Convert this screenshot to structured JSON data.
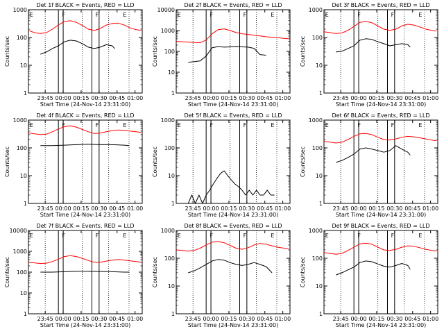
{
  "x_ticks": [
    "23:45",
    "00:00",
    "00:15",
    "00:30",
    "00:45",
    "01:00"
  ],
  "xlabel": "Start Time (24-Nov-14 23:31:00)",
  "ylabel": "Counts/sec",
  "colors": {
    "events": "#000000",
    "lld": "#ff0000",
    "frame": "#000000",
    "dotted": "#000000"
  },
  "chart_data": [
    {
      "type": "line",
      "title": "Det 1f BLACK = Events, RED = LLD",
      "x_unit": "minutes after 23:31:00",
      "xlim": [
        0,
        95
      ],
      "ylim": [
        1,
        1000
      ],
      "y_scale": "log",
      "y_ticks": [
        "1",
        "10",
        "100",
        "1000"
      ],
      "markers": [
        {
          "x": 1,
          "label": "E"
        },
        {
          "x": 28,
          "label": "F"
        },
        {
          "x": 56,
          "label": "F"
        },
        {
          "x": 79,
          "label": "E"
        }
      ],
      "solid_lines": [
        25,
        29,
        53,
        59
      ],
      "dotted_lines": [
        14,
        45,
        67,
        84
      ],
      "series": [
        {
          "key": "lld",
          "x": [
            0,
            5,
            10,
            15,
            20,
            25,
            30,
            35,
            40,
            45,
            50,
            55,
            60,
            65,
            70,
            75,
            80,
            85,
            90,
            94
          ],
          "y": [
            180,
            150,
            140,
            150,
            200,
            280,
            380,
            400,
            350,
            270,
            200,
            180,
            210,
            280,
            320,
            330,
            280,
            220,
            190,
            180
          ]
        },
        {
          "key": "events",
          "x": [
            10,
            15,
            20,
            25,
            30,
            35,
            40,
            45,
            50,
            55,
            60,
            65,
            70,
            72
          ],
          "y": [
            25,
            30,
            40,
            50,
            70,
            80,
            75,
            60,
            45,
            40,
            45,
            55,
            50,
            40
          ]
        }
      ]
    },
    {
      "type": "line",
      "title": "Det 2f BLACK = Events, RED = LLD",
      "x_unit": "minutes after 23:31:00",
      "xlim": [
        0,
        95
      ],
      "ylim": [
        1,
        10000
      ],
      "y_scale": "log",
      "y_ticks": [
        "1",
        "10",
        "100",
        "1000",
        "10000"
      ],
      "markers": [
        {
          "x": 1,
          "label": "E"
        },
        {
          "x": 28,
          "label": "F"
        },
        {
          "x": 56,
          "label": "F"
        },
        {
          "x": 79,
          "label": "E"
        }
      ],
      "solid_lines": [
        25,
        29,
        53,
        59
      ],
      "dotted_lines": [
        14,
        45,
        67,
        84
      ],
      "series": [
        {
          "key": "lld",
          "x": [
            0,
            10,
            20,
            25,
            30,
            35,
            40,
            45,
            50,
            55,
            60,
            65,
            70,
            75,
            80,
            85,
            90,
            94
          ],
          "y": [
            300,
            280,
            260,
            350,
            700,
            1100,
            1200,
            1000,
            800,
            700,
            650,
            600,
            550,
            500,
            480,
            450,
            420,
            400
          ]
        },
        {
          "key": "events",
          "x": [
            10,
            15,
            20,
            25,
            30,
            35,
            40,
            45,
            50,
            55,
            60,
            65,
            70,
            75
          ],
          "y": [
            30,
            32,
            35,
            60,
            150,
            170,
            160,
            165,
            170,
            165,
            160,
            140,
            70,
            65
          ]
        }
      ]
    },
    {
      "type": "line",
      "title": "Det 3f BLACK = Events, RED = LLD",
      "x_unit": "minutes after 23:31:00",
      "xlim": [
        0,
        95
      ],
      "ylim": [
        1,
        1000
      ],
      "y_scale": "log",
      "y_ticks": [
        "1",
        "10",
        "100",
        "1000"
      ],
      "markers": [
        {
          "x": 1,
          "label": "E"
        },
        {
          "x": 28,
          "label": "F"
        },
        {
          "x": 56,
          "label": "F"
        },
        {
          "x": 79,
          "label": "E"
        }
      ],
      "solid_lines": [
        25,
        29,
        53,
        59
      ],
      "dotted_lines": [
        14,
        45,
        67,
        84
      ],
      "series": [
        {
          "key": "lld",
          "x": [
            0,
            5,
            10,
            15,
            20,
            25,
            30,
            35,
            40,
            45,
            50,
            55,
            60,
            65,
            70,
            75,
            80,
            85,
            90,
            94
          ],
          "y": [
            160,
            150,
            140,
            145,
            180,
            250,
            350,
            380,
            340,
            260,
            200,
            180,
            200,
            260,
            300,
            280,
            240,
            200,
            180,
            170
          ]
        },
        {
          "key": "events",
          "x": [
            10,
            15,
            20,
            25,
            30,
            35,
            40,
            45,
            50,
            55,
            60,
            65,
            70,
            72
          ],
          "y": [
            30,
            32,
            40,
            50,
            80,
            90,
            85,
            70,
            60,
            50,
            55,
            60,
            55,
            45
          ]
        }
      ]
    },
    {
      "type": "line",
      "title": "Det 4f BLACK = Events, RED = LLD",
      "x_unit": "minutes after 23:31:00",
      "xlim": [
        0,
        95
      ],
      "ylim": [
        1,
        1000
      ],
      "y_scale": "log",
      "y_ticks": [
        "1",
        "10",
        "100",
        "1000"
      ],
      "markers": [
        {
          "x": 1,
          "label": "E"
        },
        {
          "x": 28,
          "label": "F"
        },
        {
          "x": 56,
          "label": "F"
        },
        {
          "x": 79,
          "label": "E"
        }
      ],
      "solid_lines": [
        25,
        29,
        53,
        59
      ],
      "dotted_lines": [
        14,
        45,
        67,
        84
      ],
      "series": [
        {
          "key": "lld",
          "x": [
            0,
            5,
            10,
            15,
            20,
            25,
            30,
            35,
            40,
            45,
            50,
            55,
            60,
            65,
            70,
            75,
            80,
            85,
            90,
            94
          ],
          "y": [
            350,
            320,
            300,
            310,
            380,
            480,
            580,
            620,
            560,
            460,
            380,
            330,
            340,
            380,
            420,
            440,
            430,
            400,
            380,
            360
          ]
        },
        {
          "key": "events",
          "x": [
            10,
            20,
            30,
            40,
            50,
            60,
            70,
            80,
            84
          ],
          "y": [
            120,
            120,
            125,
            130,
            135,
            130,
            130,
            125,
            120
          ]
        }
      ]
    },
    {
      "type": "line",
      "title": "Det 5f BLACK = Events, RED = LLD",
      "x_unit": "minutes after 23:31:00",
      "xlim": [
        0,
        95
      ],
      "ylim": [
        1,
        1000
      ],
      "y_scale": "log",
      "y_ticks": [
        "1",
        "10",
        "100",
        "1000"
      ],
      "markers": [
        {
          "x": 1,
          "label": "E"
        },
        {
          "x": 28,
          "label": "F"
        },
        {
          "x": 56,
          "label": "F"
        },
        {
          "x": 79,
          "label": "E"
        }
      ],
      "solid_lines": [
        25,
        29,
        53,
        59
      ],
      "dotted_lines": [
        14,
        45,
        67,
        84
      ],
      "series": [
        {
          "key": "events",
          "x": [
            10,
            13,
            16,
            19,
            22,
            25,
            28,
            31,
            34,
            37,
            40,
            43,
            46,
            49,
            52,
            55,
            58,
            61,
            64,
            67,
            70,
            73,
            76,
            79,
            82
          ],
          "y": [
            1,
            2,
            1,
            2,
            1,
            2,
            3,
            5,
            8,
            12,
            15,
            10,
            7,
            5,
            4,
            3,
            2,
            3,
            2,
            3,
            2,
            2,
            3,
            2,
            2
          ]
        }
      ]
    },
    {
      "type": "line",
      "title": "Det 6f BLACK = Events, RED = LLD",
      "x_unit": "minutes after 23:31:00",
      "xlim": [
        0,
        95
      ],
      "ylim": [
        1,
        1000
      ],
      "y_scale": "log",
      "y_ticks": [
        "1",
        "10",
        "100",
        "1000"
      ],
      "markers": [
        {
          "x": 1,
          "label": "E"
        },
        {
          "x": 28,
          "label": "F"
        },
        {
          "x": 56,
          "label": "F"
        },
        {
          "x": 79,
          "label": "E"
        }
      ],
      "solid_lines": [
        25,
        29,
        53,
        59
      ],
      "dotted_lines": [
        14,
        45,
        67,
        84
      ],
      "series": [
        {
          "key": "lld",
          "x": [
            0,
            5,
            10,
            15,
            20,
            25,
            30,
            35,
            40,
            45,
            50,
            55,
            60,
            65,
            70,
            75,
            80,
            85,
            90,
            94
          ],
          "y": [
            170,
            160,
            150,
            160,
            200,
            260,
            320,
            330,
            300,
            240,
            200,
            190,
            210,
            240,
            260,
            250,
            230,
            210,
            190,
            180
          ]
        },
        {
          "key": "events",
          "x": [
            10,
            15,
            20,
            25,
            30,
            35,
            40,
            45,
            50,
            55,
            60,
            65,
            70,
            72
          ],
          "y": [
            30,
            35,
            45,
            60,
            90,
            100,
            90,
            80,
            70,
            80,
            120,
            90,
            70,
            55
          ]
        }
      ]
    },
    {
      "type": "line",
      "title": "Det 7f BLACK = Events, RED = LLD",
      "x_unit": "minutes after 23:31:00",
      "xlim": [
        0,
        95
      ],
      "ylim": [
        1,
        10000
      ],
      "y_scale": "log",
      "y_ticks": [
        "1",
        "10",
        "100",
        "1000",
        "10000"
      ],
      "markers": [
        {
          "x": 1,
          "label": "E"
        },
        {
          "x": 28,
          "label": "F"
        },
        {
          "x": 56,
          "label": "F"
        },
        {
          "x": 79,
          "label": "E"
        }
      ],
      "solid_lines": [
        25,
        29,
        53,
        59
      ],
      "dotted_lines": [
        14,
        45,
        67,
        84
      ],
      "series": [
        {
          "key": "lld",
          "x": [
            0,
            5,
            10,
            15,
            20,
            25,
            30,
            35,
            40,
            45,
            50,
            55,
            60,
            65,
            70,
            75,
            80,
            85,
            90,
            94
          ],
          "y": [
            300,
            280,
            260,
            270,
            320,
            420,
            560,
            620,
            560,
            460,
            360,
            300,
            300,
            340,
            380,
            400,
            380,
            350,
            320,
            300
          ]
        },
        {
          "key": "events",
          "x": [
            10,
            20,
            30,
            40,
            50,
            60,
            70,
            80,
            84
          ],
          "y": [
            100,
            100,
            105,
            110,
            110,
            108,
            105,
            100,
            100
          ]
        }
      ]
    },
    {
      "type": "line",
      "title": "Det 8f BLACK = Events, RED = LLD",
      "x_unit": "minutes after 23:31:00",
      "xlim": [
        0,
        95
      ],
      "ylim": [
        1,
        1000
      ],
      "y_scale": "log",
      "y_ticks": [
        "1",
        "10",
        "100",
        "1000"
      ],
      "markers": [
        {
          "x": 1,
          "label": "E"
        },
        {
          "x": 28,
          "label": "F"
        },
        {
          "x": 56,
          "label": "F"
        },
        {
          "x": 79,
          "label": "E"
        }
      ],
      "solid_lines": [
        25,
        29,
        53,
        59
      ],
      "dotted_lines": [
        14,
        45,
        67,
        84
      ],
      "series": [
        {
          "key": "lld",
          "x": [
            0,
            5,
            10,
            15,
            20,
            25,
            30,
            35,
            40,
            45,
            50,
            55,
            60,
            65,
            70,
            75,
            80,
            85,
            90,
            94
          ],
          "y": [
            200,
            190,
            180,
            190,
            230,
            300,
            380,
            400,
            360,
            290,
            230,
            210,
            240,
            300,
            340,
            320,
            280,
            250,
            230,
            220
          ]
        },
        {
          "key": "events",
          "x": [
            10,
            15,
            20,
            25,
            30,
            35,
            40,
            45,
            50,
            55,
            60,
            65,
            70,
            75,
            80
          ],
          "y": [
            30,
            35,
            45,
            60,
            80,
            90,
            85,
            70,
            60,
            55,
            60,
            70,
            60,
            50,
            30
          ]
        }
      ]
    },
    {
      "type": "line",
      "title": "Det 9f BLACK = Events, RED = LLD",
      "x_unit": "minutes after 23:31:00",
      "xlim": [
        0,
        95
      ],
      "ylim": [
        1,
        1000
      ],
      "y_scale": "log",
      "y_ticks": [
        "1",
        "10",
        "100",
        "1000"
      ],
      "markers": [
        {
          "x": 1,
          "label": "E"
        },
        {
          "x": 28,
          "label": "F"
        },
        {
          "x": 56,
          "label": "F"
        },
        {
          "x": 79,
          "label": "E"
        }
      ],
      "solid_lines": [
        25,
        29,
        53,
        59
      ],
      "dotted_lines": [
        14,
        45,
        67,
        84
      ],
      "series": [
        {
          "key": "lld",
          "x": [
            0,
            5,
            10,
            15,
            20,
            25,
            30,
            35,
            40,
            45,
            50,
            55,
            60,
            65,
            70,
            75,
            80,
            85,
            90,
            94
          ],
          "y": [
            160,
            150,
            140,
            150,
            190,
            250,
            330,
            350,
            320,
            250,
            200,
            190,
            210,
            250,
            280,
            270,
            240,
            210,
            190,
            180
          ]
        },
        {
          "key": "events",
          "x": [
            10,
            15,
            20,
            25,
            30,
            35,
            40,
            45,
            50,
            55,
            60,
            65,
            70,
            72
          ],
          "y": [
            25,
            30,
            38,
            48,
            70,
            80,
            75,
            62,
            52,
            48,
            55,
            65,
            55,
            40
          ]
        }
      ]
    }
  ]
}
